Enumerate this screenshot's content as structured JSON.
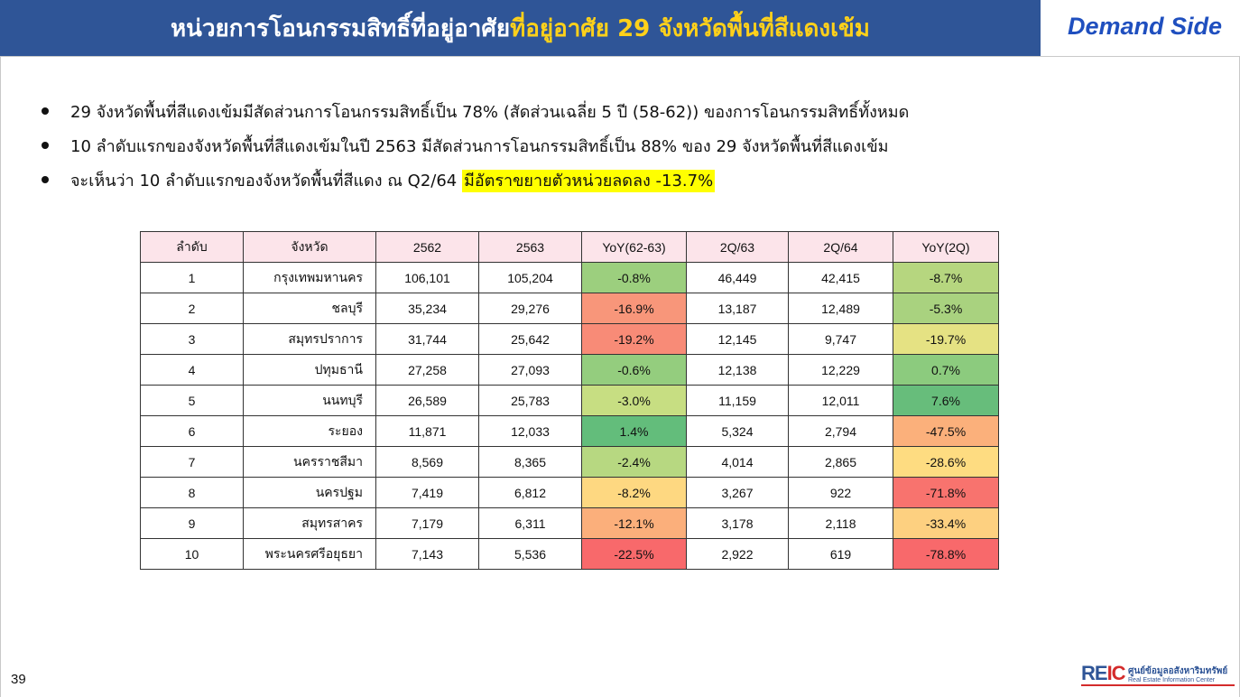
{
  "header": {
    "title_white": "หน่วยการโอนกรรมสิทธิ์ที่อยู่อาศัย",
    "title_yellow": "ที่อยู่อาศัย 29 จังหวัดพื้นที่สีแดงเข้ม",
    "side_label": "Demand Side"
  },
  "colors": {
    "header_band": "#2f5597",
    "title_highlight": "#ffd11a",
    "side_label": "#1f4fbf",
    "table_header_bg": "#fce4ea",
    "text_highlight": "#ffff00"
  },
  "bullets": [
    {
      "text": "29 จังหวัดพื้นที่สีแดงเข้มมีสัดส่วนการโอนกรรมสิทธิ์เป็น 78% (สัดส่วนเฉลี่ย 5 ปี (58-62)) ของการโอนกรรมสิทธิ์ทั้งหมด",
      "highlight": ""
    },
    {
      "text": "10 ลำดับแรกของจังหวัดพื้นที่สีแดงเข้มในปี 2563 มีสัดส่วนการโอนกรรมสิทธิ์เป็น 88% ของ 29 จังหวัดพื้นที่สีแดงเข้ม",
      "highlight": ""
    },
    {
      "text": "จะเห็นว่า 10 ลำดับแรกของจังหวัดพื้นที่สีแดง ณ Q2/64 ",
      "highlight": "มีอัตราขยายตัวหน่วยลดลง -13.7%"
    }
  ],
  "table": {
    "headers": [
      "ลำดับ",
      "จังหวัด",
      "2562",
      "2563",
      "YoY(62-63)",
      "2Q/63",
      "2Q/64",
      "YoY(2Q)"
    ],
    "rows": [
      {
        "cells": [
          "1",
          "กรุงเทพมหานคร",
          "106,101",
          "105,204",
          "-0.8%",
          "46,449",
          "42,415",
          "-8.7%"
        ],
        "yoy_color": "#9ccf7e",
        "yoy2q_color": "#b6d67f"
      },
      {
        "cells": [
          "2",
          "ชลบุรี",
          "35,234",
          "29,276",
          "-16.9%",
          "13,187",
          "12,489",
          "-5.3%"
        ],
        "yoy_color": "#f8967a",
        "yoy2q_color": "#a9d27f"
      },
      {
        "cells": [
          "3",
          "สมุทรปราการ",
          "31,744",
          "25,642",
          "-19.2%",
          "12,145",
          "9,747",
          "-19.7%"
        ],
        "yoy_color": "#f88b77",
        "yoy2q_color": "#e5e283"
      },
      {
        "cells": [
          "4",
          "ปทุมธานี",
          "27,258",
          "27,093",
          "-0.6%",
          "12,138",
          "12,229",
          "0.7%"
        ],
        "yoy_color": "#94cd7e",
        "yoy2q_color": "#8ccb7e"
      },
      {
        "cells": [
          "5",
          "นนทบุรี",
          "26,589",
          "25,783",
          "-3.0%",
          "11,159",
          "12,011",
          "7.6%"
        ],
        "yoy_color": "#c7de82",
        "yoy2q_color": "#67bd7b"
      },
      {
        "cells": [
          "6",
          "ระยอง",
          "11,871",
          "12,033",
          "1.4%",
          "5,324",
          "2,794",
          "-47.5%"
        ],
        "yoy_color": "#63bd7b",
        "yoy2q_color": "#fbb07b"
      },
      {
        "cells": [
          "7",
          "นครราชสีมา",
          "8,569",
          "8,365",
          "-2.4%",
          "4,014",
          "2,865",
          "-28.6%"
        ],
        "yoy_color": "#b7d881",
        "yoy2q_color": "#fedc81"
      },
      {
        "cells": [
          "8",
          "นครปฐม",
          "7,419",
          "6,812",
          "-8.2%",
          "3,267",
          "922",
          "-71.8%"
        ],
        "yoy_color": "#fed881",
        "yoy2q_color": "#f8736e"
      },
      {
        "cells": [
          "9",
          "สมุทรสาคร",
          "7,179",
          "6,311",
          "-12.1%",
          "3,178",
          "2,118",
          "-33.4%"
        ],
        "yoy_color": "#fbaf7b",
        "yoy2q_color": "#fdd080"
      },
      {
        "cells": [
          "10",
          "พระนครศรีอยุธยา",
          "7,143",
          "5,536",
          "-22.5%",
          "2,922",
          "619",
          "-78.8%"
        ],
        "yoy_color": "#f8696b",
        "yoy2q_color": "#f8696b"
      }
    ]
  },
  "page_number": "39",
  "logo": {
    "mark_blue": "RE",
    "mark_red": "IC",
    "thai_name": "ศูนย์ข้อมูลอสังหาริมทรัพย์",
    "english_name": "Real Estate Information Center"
  }
}
